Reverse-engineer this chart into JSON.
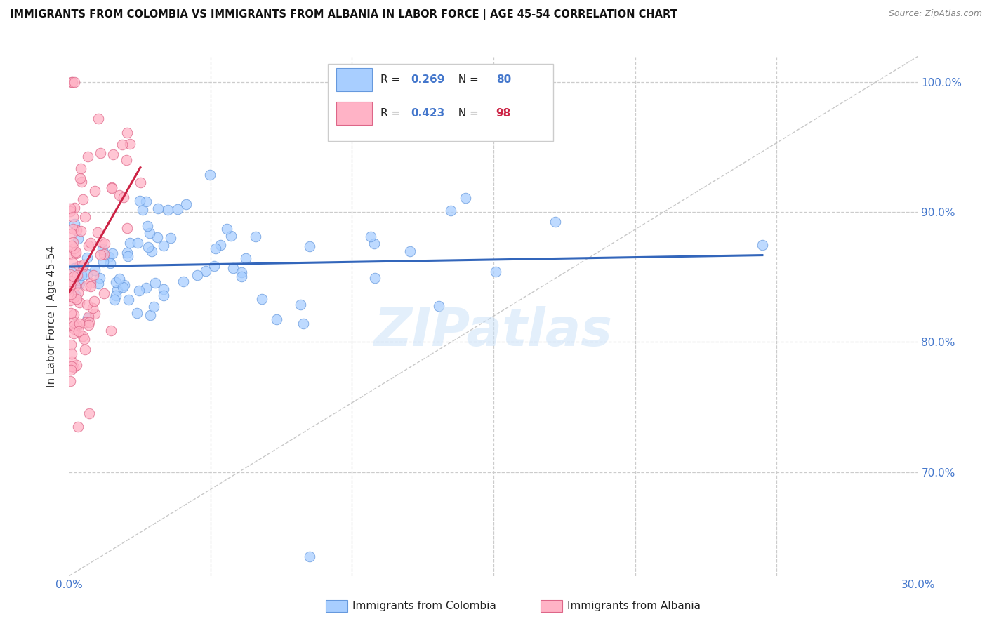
{
  "title": "IMMIGRANTS FROM COLOMBIA VS IMMIGRANTS FROM ALBANIA IN LABOR FORCE | AGE 45-54 CORRELATION CHART",
  "source": "Source: ZipAtlas.com",
  "ylabel": "In Labor Force | Age 45-54",
  "xlim": [
    0.0,
    0.3
  ],
  "ylim": [
    0.62,
    1.02
  ],
  "colombia_color": "#A8CEFF",
  "albania_color": "#FFB3C6",
  "colombia_edge": "#6699DD",
  "albania_edge": "#DD6688",
  "trend_colombia_color": "#3366BB",
  "trend_albania_color": "#CC2244",
  "r_colombia": 0.269,
  "n_colombia": 80,
  "r_albania": 0.423,
  "n_albania": 98,
  "legend_label_colombia": "Immigrants from Colombia",
  "legend_label_albania": "Immigrants from Albania",
  "watermark": "ZIPatlas",
  "tick_color": "#4477CC",
  "grid_color": "#CCCCCC",
  "ref_line_color": "#CCCCCC"
}
